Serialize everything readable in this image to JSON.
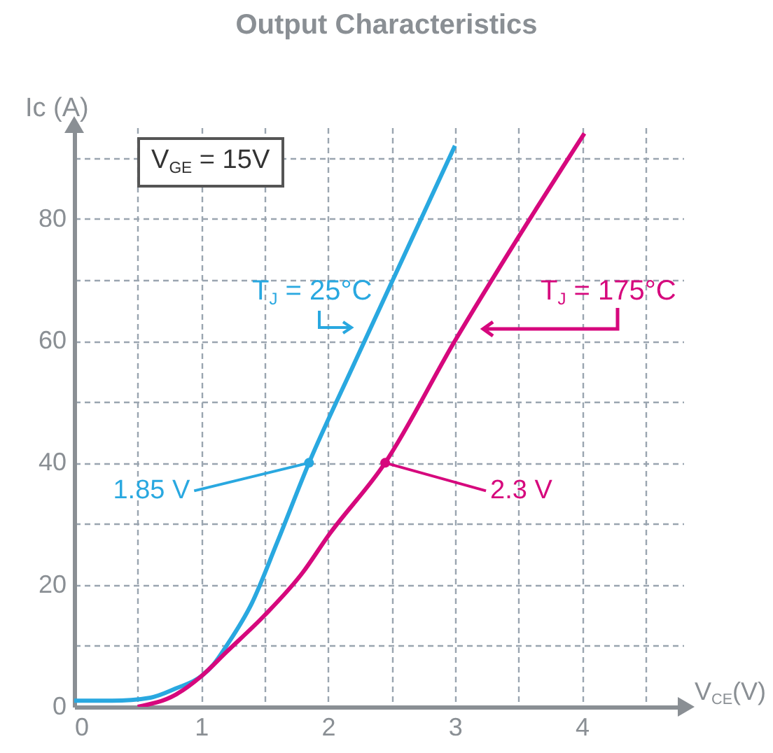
{
  "chart_data": {
    "type": "line",
    "title": "Output Characteristics",
    "xlabel": "V$_{CE}$(V)",
    "ylabel": "Ic (A)",
    "xlim": [
      0,
      4.8
    ],
    "ylim": [
      0,
      95
    ],
    "xticks": [
      0,
      {
        "value": 0.5,
        "label": null
      },
      1,
      {
        "value": 1.5,
        "label": null
      },
      2,
      {
        "value": 2.5,
        "label": null
      },
      3,
      {
        "value": 3.5,
        "label": null
      },
      4,
      {
        "value": 4.5,
        "label": null
      }
    ],
    "yticks": [
      0,
      {
        "value": 10,
        "label": null
      },
      20,
      {
        "value": 30,
        "label": null
      },
      40,
      {
        "value": 50,
        "label": null
      },
      60,
      {
        "value": 70,
        "label": null
      },
      80,
      {
        "value": 90,
        "label": null
      }
    ],
    "grid": true,
    "series": [
      {
        "name": "T$_{J}$ = 25°C",
        "color": "#29a8e0",
        "x": [
          0,
          0.3,
          0.6,
          0.8,
          1,
          1.1,
          1.2,
          1.4,
          1.6,
          1.85,
          2.2,
          2.6,
          3
        ],
        "values": [
          1,
          1,
          1.5,
          3,
          5,
          7,
          10,
          17,
          27,
          40,
          56,
          74,
          92
        ]
      },
      {
        "name": "T$_{J}$ = 175°C",
        "color": "#d6087d",
        "x": [
          0.5,
          0.8,
          1,
          1.2,
          1.5,
          1.8,
          2,
          2.45,
          3,
          3.5,
          4.02
        ],
        "values": [
          0,
          2,
          5,
          9,
          15,
          22,
          28,
          40,
          60,
          77,
          94
        ]
      }
    ],
    "annotations": [
      "V$_{GE}$ = 15V",
      {
        "text": "1.85 V",
        "x": 1.85,
        "y": 40
      },
      {
        "text": "2.3 V",
        "x": 2.45,
        "y": 40
      }
    ]
  }
}
